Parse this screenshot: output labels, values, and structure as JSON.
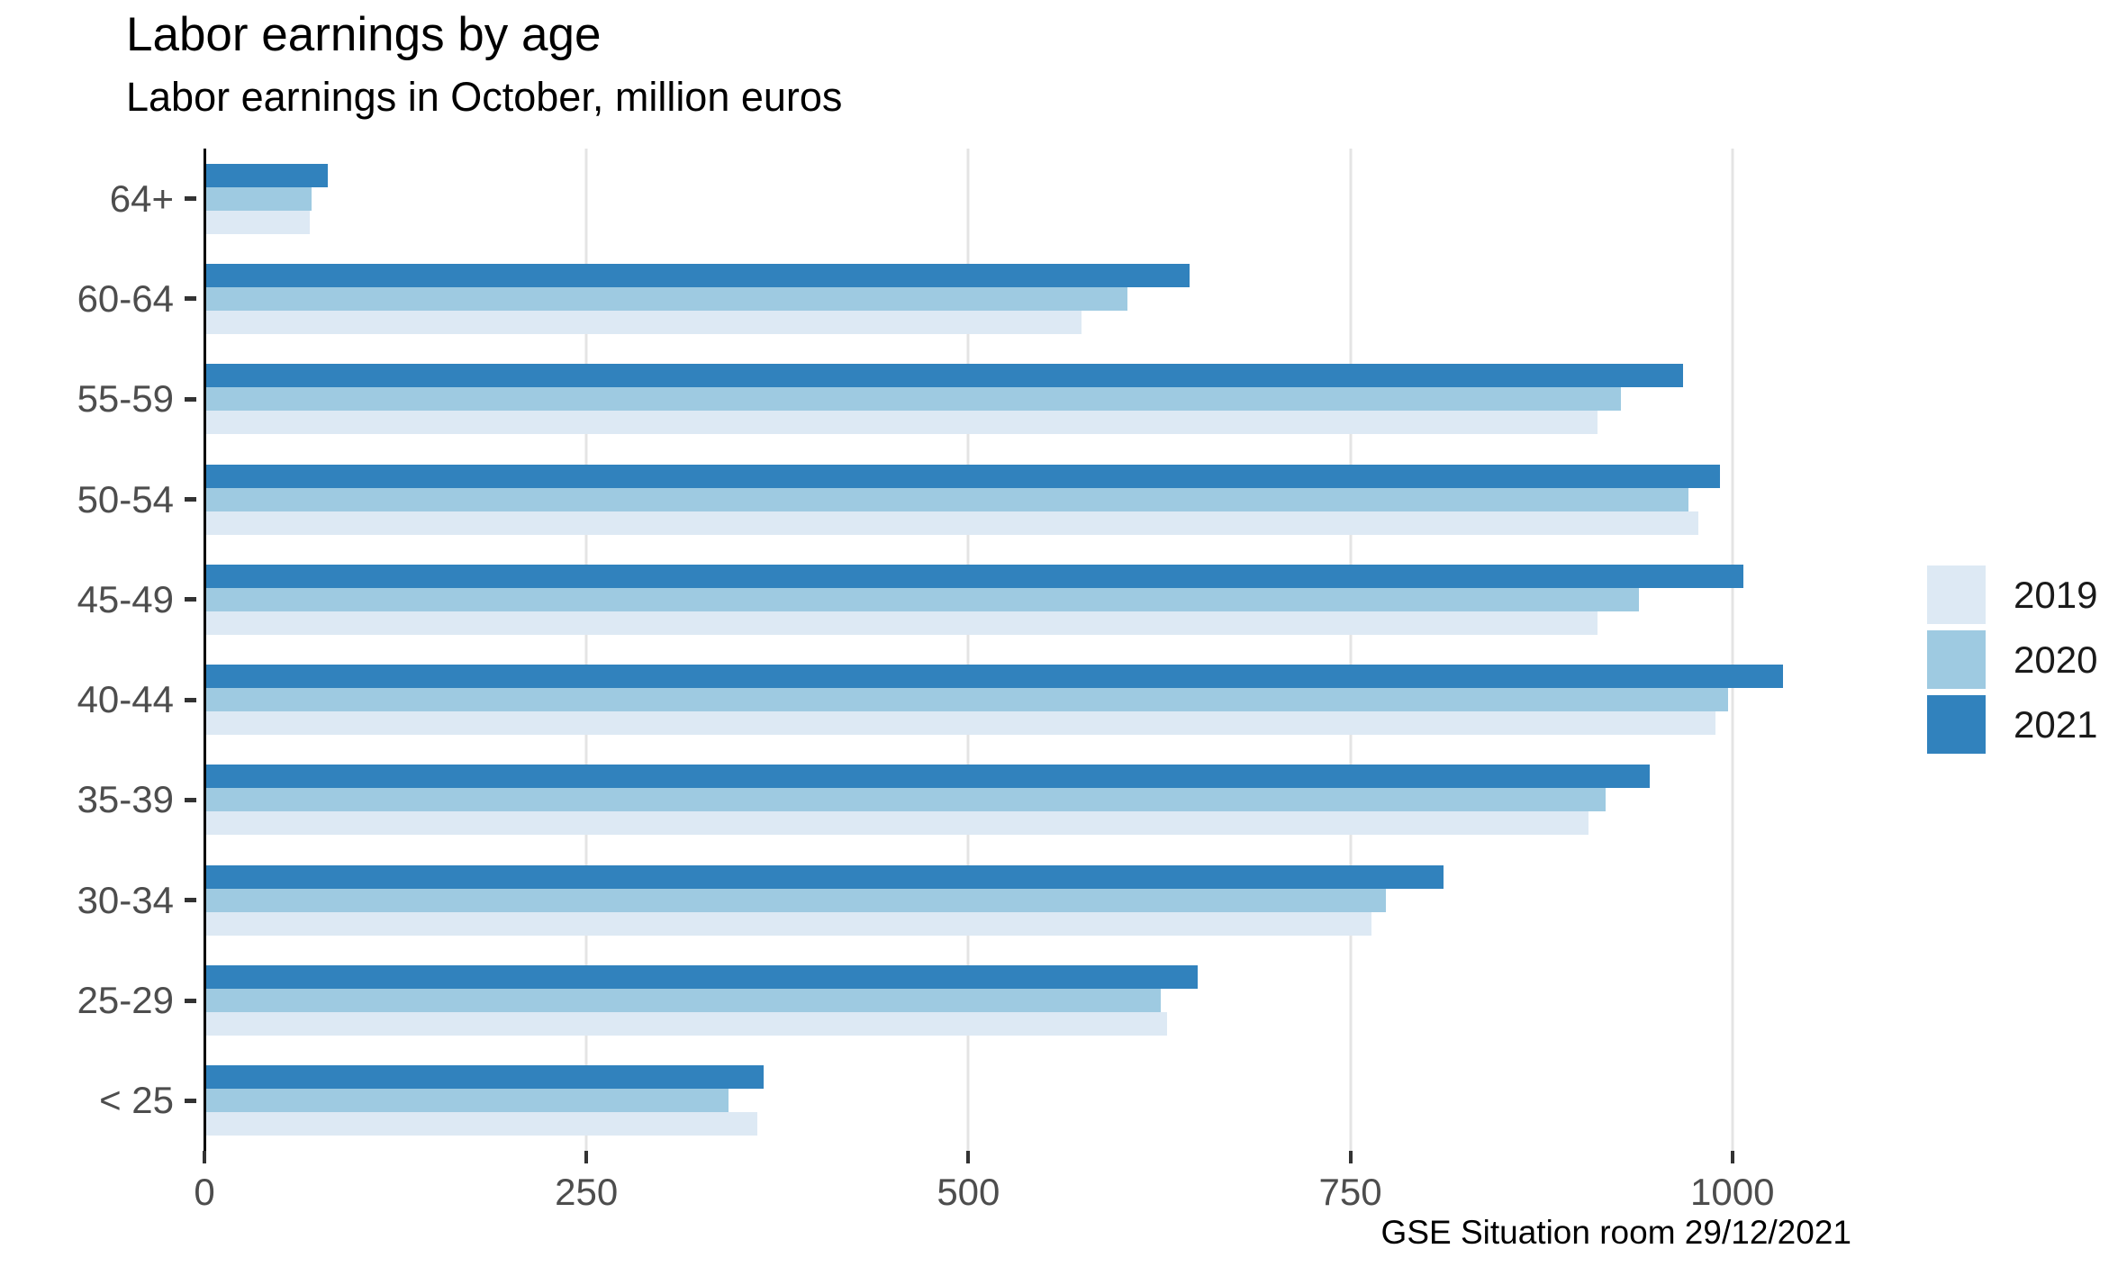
{
  "title": "Labor earnings by age",
  "subtitle": "Labor earnings in October, million euros",
  "caption": "GSE Situation room 29/12/2021",
  "legend": {
    "position": "right",
    "items": [
      {
        "label": "2019",
        "color": "#dde9f4"
      },
      {
        "label": "2020",
        "color": "#9ecae1"
      },
      {
        "label": "2021",
        "color": "#3182bd"
      }
    ]
  },
  "chart_data": {
    "type": "bar",
    "orientation": "horizontal",
    "title": "Labor earnings by age",
    "subtitle": "Labor earnings in October, million euros",
    "xlabel": "",
    "ylabel": "",
    "categories": [
      "64+",
      "60-64",
      "55-59",
      "50-54",
      "45-49",
      "40-44",
      "35-39",
      "30-34",
      "25-29",
      "< 25"
    ],
    "series": [
      {
        "name": "2019",
        "color": "#dde9f4",
        "values": [
          69,
          574,
          912,
          978,
          912,
          989,
          906,
          764,
          630,
          362
        ]
      },
      {
        "name": "2020",
        "color": "#9ecae1",
        "values": [
          70,
          604,
          927,
          971,
          939,
          997,
          917,
          773,
          626,
          343
        ]
      },
      {
        "name": "2021",
        "color": "#3182bd",
        "values": [
          81,
          645,
          968,
          992,
          1007,
          1033,
          946,
          811,
          650,
          366
        ]
      }
    ],
    "bar_order_top_to_bottom": [
      "2021",
      "2020",
      "2019"
    ],
    "x_ticks": [
      0,
      250,
      500,
      750,
      1000
    ],
    "x_tick_labels": [
      "0",
      "250",
      "500",
      "750",
      "1000"
    ],
    "xlim": [
      0,
      1098
    ],
    "grid": "major-x-only",
    "legend_position": "right"
  },
  "colors": {
    "background": "#ffffff",
    "gridline": "#e4e4e4",
    "axis_line": "#000000",
    "tick_mark": "#333333",
    "tick_label": "#4d4d4d",
    "text": "#000000"
  }
}
